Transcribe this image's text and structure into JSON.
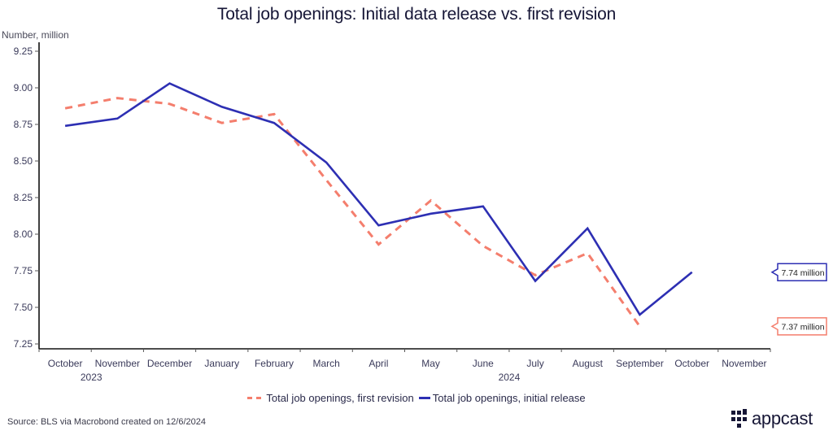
{
  "chart_data": {
    "type": "line",
    "title": "Total job openings: Initial data release vs. first revision",
    "ylabel": "Number, million",
    "xlabel": "",
    "ylim": [
      7.25,
      9.25
    ],
    "yticks": [
      "9.25",
      "9.00",
      "8.75",
      "8.50",
      "8.25",
      "8.00",
      "7.75",
      "7.50",
      "7.25"
    ],
    "ytick_values": [
      9.25,
      9.0,
      8.75,
      8.5,
      8.25,
      8.0,
      7.75,
      7.5,
      7.25
    ],
    "categories": [
      "October",
      "November",
      "December",
      "January",
      "February",
      "March",
      "April",
      "May",
      "June",
      "July",
      "August",
      "September",
      "October",
      "November"
    ],
    "year_labels": [
      {
        "index": 0,
        "label": "2023"
      },
      {
        "index": 8,
        "label": "2024"
      }
    ],
    "grid": false,
    "legend_position": "bottom",
    "series": [
      {
        "name": "Total job openings, first revision",
        "style": "dashed",
        "color": "#f47e6d",
        "values": [
          8.86,
          8.93,
          8.89,
          8.76,
          8.82,
          8.37,
          7.93,
          8.23,
          7.92,
          7.72,
          7.87,
          7.37,
          null,
          null
        ],
        "end_label": "7.37 million"
      },
      {
        "name": "Total job openings, initial release",
        "style": "solid",
        "color": "#2d2fb3",
        "values": [
          8.74,
          8.79,
          9.03,
          8.87,
          8.76,
          8.49,
          8.06,
          8.14,
          8.19,
          7.68,
          8.04,
          7.45,
          7.74,
          null
        ],
        "end_label": "7.74 million"
      }
    ]
  },
  "footer": {
    "source": "Source: BLS via Macrobond created on 12/6/2024",
    "logo_text": "appcast"
  }
}
